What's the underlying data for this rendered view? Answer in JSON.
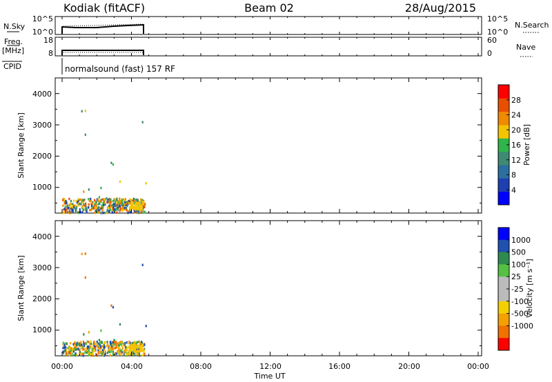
{
  "header": {
    "station": "Kodiak (fitACF)",
    "beam": "Beam 02",
    "date": "28/Aug/2015"
  },
  "nsky_panel": {
    "left_label": "N.Sky",
    "right_label": "N.Search",
    "left_ticks": [
      "10^5",
      "10^0"
    ],
    "right_ticks": [
      "10^5",
      "10^0"
    ]
  },
  "freq_panel": {
    "left_label_line1": "Freq.",
    "left_label_line2": "[MHz]",
    "right_label": "Nave",
    "left_ticks": [
      "18",
      "8"
    ],
    "right_ticks": [
      "60",
      "0"
    ]
  },
  "cpid": {
    "label": "CPID",
    "text": "normalsound (fast) 157 RF"
  },
  "xaxis": {
    "title": "Time UT",
    "ticks": [
      "00:00",
      "04:00",
      "08:00",
      "12:00",
      "16:00",
      "20:00",
      "00:00"
    ]
  },
  "chart_data": [
    {
      "type": "heatmap",
      "title": "",
      "ylabel": "Slant Range [km]",
      "xlabel": "Time UT",
      "xlim": [
        0,
        24
      ],
      "ylim": [
        180,
        4500
      ],
      "yticks": [
        "1000",
        "2000",
        "3000",
        "4000"
      ],
      "colorbar": {
        "label": "Power [dB]",
        "tick_labels": [
          "4",
          "8",
          "12",
          "16",
          "20",
          "24",
          "28"
        ],
        "range": [
          0,
          32
        ],
        "colors": [
          "#0000ff",
          "#1c3cb4",
          "#2a6aa8",
          "#3c8a6e",
          "#2fb54a",
          "#8fd63a",
          "#f5c400",
          "#f59c00",
          "#f06a00",
          "#e03000",
          "#ff0000"
        ]
      },
      "data_extent_hours": [
        0,
        4.75
      ]
    },
    {
      "type": "heatmap",
      "title": "",
      "ylabel": "Slant Range [km]",
      "xlabel": "Time UT",
      "xlim": [
        0,
        24
      ],
      "ylim": [
        180,
        4500
      ],
      "yticks": [
        "1000",
        "2000",
        "3000",
        "4000"
      ],
      "colorbar": {
        "label": "Velocity [m s⁻¹]",
        "tick_labels": [
          "1000",
          "500",
          "100",
          "25",
          "-25",
          "-100",
          "-500",
          "-1000"
        ],
        "colors": [
          "#0000ff",
          "#2050b0",
          "#2f8a50",
          "#55c043",
          "#bbbbbb",
          "#f5d000",
          "#f5a000",
          "#f07000",
          "#e03000",
          "#ff0000"
        ]
      },
      "data_extent_hours": [
        0,
        4.75
      ]
    }
  ]
}
